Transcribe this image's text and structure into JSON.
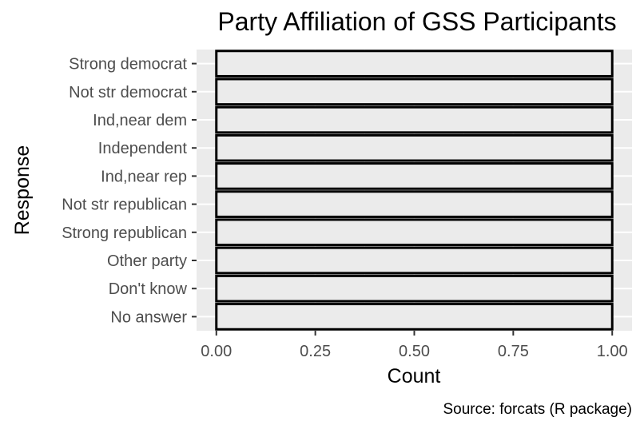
{
  "chart_data": {
    "type": "bar",
    "orientation": "horizontal",
    "title": "Party Affiliation of GSS Participants",
    "xlabel": "Count",
    "ylabel": "Response",
    "caption": "Source: forcats (R package)",
    "categories": [
      "Strong democrat",
      "Not str democrat",
      "Ind,near dem",
      "Independent",
      "Ind,near rep",
      "Not str republican",
      "Strong republican",
      "Other party",
      "Don't know",
      "No answer"
    ],
    "values": [
      1,
      1,
      1,
      1,
      1,
      1,
      1,
      1,
      1,
      1
    ],
    "xlim": [
      -0.05,
      1.05
    ],
    "xticks": [
      0,
      0.25,
      0.5,
      0.75,
      1
    ],
    "xtick_labels": [
      "0.00",
      "0.25",
      "0.50",
      "0.75",
      "1.00"
    ],
    "grid": true,
    "colors": {
      "panel_background": "#ebebeb",
      "grid_line": "#ffffff",
      "bar_fill": "#ebebeb",
      "bar_outline": "#000000",
      "tick_text": "#4d4d4d"
    }
  }
}
